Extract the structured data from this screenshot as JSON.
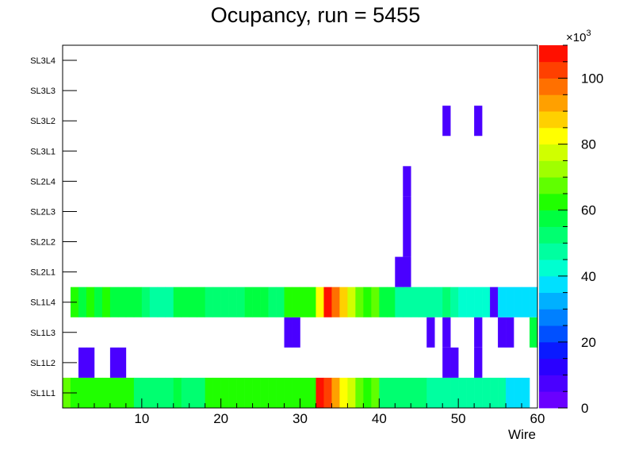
{
  "chart_data": {
    "type": "heatmap",
    "title": "Ocupancy, run = 5455",
    "xlabel": "Wire",
    "xlim": [
      0,
      60
    ],
    "xticks": [
      10,
      20,
      30,
      40,
      50,
      60
    ],
    "ylabels": [
      "SL1L1",
      "SL1L2",
      "SL1L3",
      "SL1L4",
      "SL2L1",
      "SL2L2",
      "SL2L3",
      "SL2L4",
      "SL3L1",
      "SL3L2",
      "SL3L3",
      "SL3L4"
    ],
    "zlim": [
      0,
      110000
    ],
    "zticks": [
      0,
      20,
      40,
      60,
      80,
      100
    ],
    "z_multiplier": "×10",
    "z_exponent": "3",
    "rows": [
      {
        "layer": "SL1L1",
        "wires": [
          1,
          2,
          3,
          4,
          5,
          6,
          7,
          8,
          9,
          10,
          11,
          12,
          13,
          14,
          15,
          16,
          17,
          18,
          19,
          20,
          21,
          22,
          23,
          24,
          25,
          26,
          27,
          28,
          29,
          30,
          31,
          32,
          33,
          34,
          35,
          36,
          37,
          38,
          39,
          40,
          41,
          42,
          43,
          44,
          45,
          46,
          47,
          48,
          49,
          50,
          51,
          52,
          53,
          54,
          55,
          56,
          57,
          58,
          59
        ],
        "values": [
          66000,
          62000,
          62000,
          62000,
          62000,
          62000,
          62000,
          62000,
          62000,
          50000,
          50000,
          50000,
          50000,
          50000,
          55000,
          50000,
          50000,
          50000,
          62000,
          62000,
          62000,
          62000,
          62000,
          62000,
          62000,
          62000,
          62000,
          62000,
          62000,
          62000,
          62000,
          62000,
          105000,
          100000,
          90000,
          80000,
          76000,
          66000,
          62000,
          66000,
          50000,
          50000,
          50000,
          50000,
          50000,
          50000,
          46000,
          46000,
          46000,
          46000,
          46000,
          46000,
          46000,
          46000,
          46000,
          46000,
          38000,
          38000,
          38000
        ]
      },
      {
        "layer": "SL1L2",
        "wires": [
          3,
          4,
          7,
          8,
          49,
          50,
          53
        ],
        "values": [
          8000,
          8000,
          8000,
          8000,
          8000,
          8000,
          8000
        ]
      },
      {
        "layer": "SL1L3",
        "wires": [
          29,
          30,
          47,
          49,
          53,
          56,
          57,
          60
        ],
        "values": [
          8000,
          8000,
          8000,
          8000,
          8000,
          8000,
          8000,
          55000
        ]
      },
      {
        "layer": "SL1L4",
        "wires": [
          2,
          3,
          4,
          5,
          6,
          7,
          8,
          9,
          10,
          11,
          12,
          13,
          14,
          15,
          16,
          17,
          18,
          19,
          20,
          21,
          22,
          23,
          24,
          25,
          26,
          27,
          28,
          29,
          30,
          31,
          32,
          33,
          34,
          35,
          36,
          37,
          38,
          39,
          40,
          41,
          42,
          43,
          44,
          45,
          46,
          47,
          48,
          49,
          50,
          51,
          52,
          53,
          54,
          55,
          56,
          57,
          58,
          59,
          60
        ],
        "values": [
          62000,
          55000,
          62000,
          55000,
          62000,
          55000,
          55000,
          55000,
          55000,
          50000,
          46000,
          46000,
          46000,
          55000,
          55000,
          55000,
          55000,
          50000,
          50000,
          50000,
          50000,
          50000,
          55000,
          55000,
          55000,
          50000,
          50000,
          62000,
          62000,
          62000,
          62000,
          80000,
          105000,
          95000,
          85000,
          76000,
          66000,
          62000,
          66000,
          55000,
          55000,
          46000,
          46000,
          46000,
          46000,
          46000,
          46000,
          50000,
          46000,
          42000,
          42000,
          42000,
          42000,
          8000,
          38000,
          38000,
          38000,
          38000,
          38000
        ]
      },
      {
        "layer": "SL2L1",
        "wires": [
          43,
          44
        ],
        "values": [
          8000,
          8000
        ]
      },
      {
        "layer": "SL2L2",
        "wires": [
          44
        ],
        "values": [
          8000
        ]
      },
      {
        "layer": "SL2L3",
        "wires": [
          44
        ],
        "values": [
          8000
        ]
      },
      {
        "layer": "SL2L4",
        "wires": [
          44
        ],
        "values": [
          8000
        ]
      },
      {
        "layer": "SL3L1",
        "wires": [],
        "values": []
      },
      {
        "layer": "SL3L2",
        "wires": [
          49,
          53
        ],
        "values": [
          8000,
          8000
        ]
      },
      {
        "layer": "SL3L3",
        "wires": [],
        "values": []
      },
      {
        "layer": "SL3L4",
        "wires": [],
        "values": []
      }
    ]
  }
}
